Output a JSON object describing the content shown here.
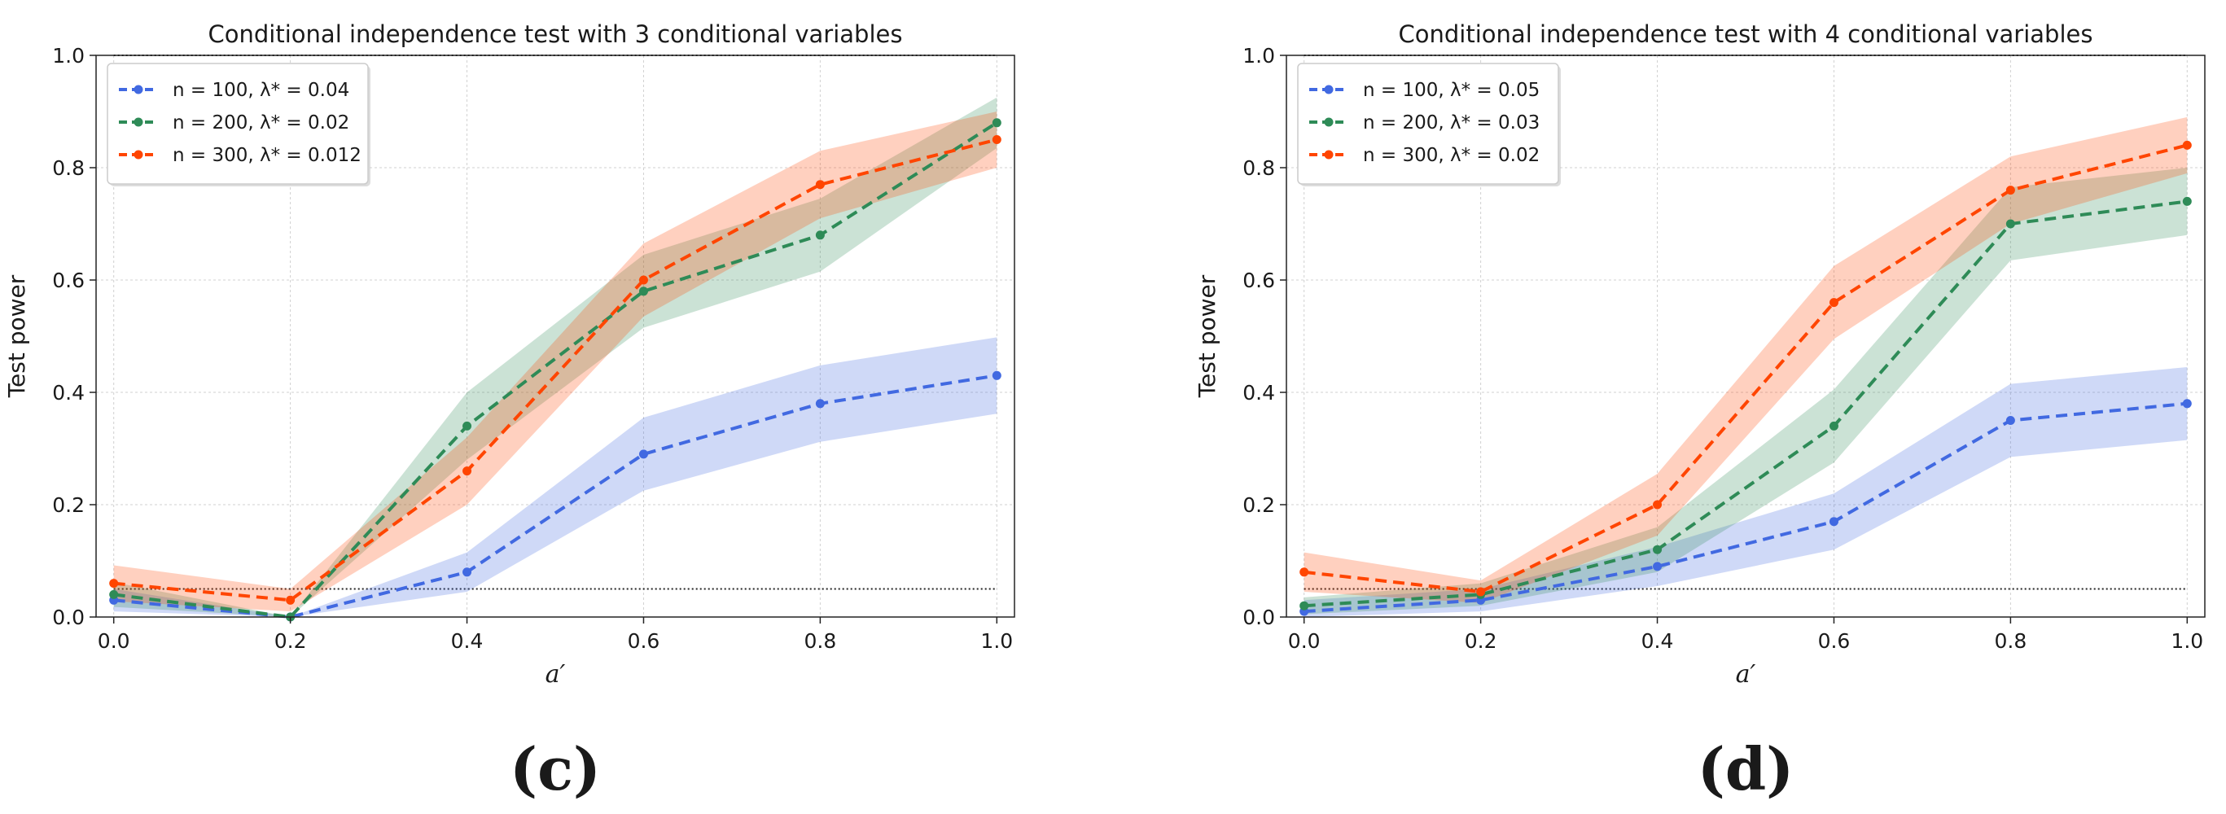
{
  "chart_data": [
    {
      "type": "line",
      "title": "Conditional independence test with 3 conditional variables",
      "xlabel": "a′",
      "ylabel": "Test power",
      "xlim": [
        -0.02,
        1.02
      ],
      "ylim": [
        0.0,
        1.0
      ],
      "x_ticks": [
        "0.0",
        "0.2",
        "0.4",
        "0.6",
        "0.8",
        "1.0"
      ],
      "y_ticks": [
        "0.0",
        "0.2",
        "0.4",
        "0.6",
        "0.8",
        "1.0"
      ],
      "grid": true,
      "legend_position": "top-left",
      "reference_lines": [
        0.05,
        1.0
      ],
      "panel_label": "(c)",
      "x": [
        0.0,
        0.2,
        0.4,
        0.6,
        0.8,
        1.0
      ],
      "series": [
        {
          "name": "n = 100, λ* = 0.04",
          "color": "#4169e1",
          "values": [
            0.03,
            0.0,
            0.08,
            0.29,
            0.38,
            0.43
          ],
          "lower": [
            0.01,
            0.0,
            0.045,
            0.225,
            0.312,
            0.362
          ],
          "upper": [
            0.05,
            0.0,
            0.115,
            0.355,
            0.448,
            0.498
          ]
        },
        {
          "name": "n = 200, λ* = 0.02",
          "color": "#2e8b57",
          "values": [
            0.04,
            0.0,
            0.34,
            0.58,
            0.68,
            0.88
          ],
          "lower": [
            0.018,
            0.0,
            0.28,
            0.515,
            0.615,
            0.835
          ],
          "upper": [
            0.062,
            0.0,
            0.4,
            0.645,
            0.745,
            0.925
          ]
        },
        {
          "name": "n = 300, λ* = 0.012",
          "color": "#ff4500",
          "values": [
            0.06,
            0.03,
            0.26,
            0.6,
            0.77,
            0.85
          ],
          "lower": [
            0.028,
            0.01,
            0.2,
            0.535,
            0.71,
            0.8
          ],
          "upper": [
            0.092,
            0.05,
            0.32,
            0.665,
            0.83,
            0.9
          ]
        }
      ]
    },
    {
      "type": "line",
      "title": "Conditional independence test with 4 conditional variables",
      "xlabel": "a′",
      "ylabel": "Test power",
      "xlim": [
        -0.02,
        1.02
      ],
      "ylim": [
        0.0,
        1.0
      ],
      "x_ticks": [
        "0.0",
        "0.2",
        "0.4",
        "0.6",
        "0.8",
        "1.0"
      ],
      "y_ticks": [
        "0.0",
        "0.2",
        "0.4",
        "0.6",
        "0.8",
        "1.0"
      ],
      "grid": true,
      "legend_position": "top-left",
      "reference_lines": [
        0.05,
        1.0
      ],
      "panel_label": "(d)",
      "x": [
        0.0,
        0.2,
        0.4,
        0.6,
        0.8,
        1.0
      ],
      "series": [
        {
          "name": "n = 100, λ* = 0.05",
          "color": "#4169e1",
          "values": [
            0.01,
            0.03,
            0.09,
            0.17,
            0.35,
            0.38
          ],
          "lower": [
            0.0,
            0.01,
            0.055,
            0.12,
            0.285,
            0.315
          ],
          "upper": [
            0.03,
            0.05,
            0.125,
            0.22,
            0.415,
            0.445
          ]
        },
        {
          "name": "n = 200, λ* = 0.03",
          "color": "#2e8b57",
          "values": [
            0.02,
            0.04,
            0.12,
            0.34,
            0.7,
            0.74
          ],
          "lower": [
            0.005,
            0.02,
            0.08,
            0.275,
            0.635,
            0.68
          ],
          "upper": [
            0.035,
            0.06,
            0.16,
            0.405,
            0.765,
            0.8
          ]
        },
        {
          "name": "n = 300, λ* = 0.02",
          "color": "#ff4500",
          "values": [
            0.08,
            0.045,
            0.2,
            0.56,
            0.76,
            0.84
          ],
          "lower": [
            0.045,
            0.025,
            0.145,
            0.495,
            0.7,
            0.79
          ],
          "upper": [
            0.115,
            0.065,
            0.255,
            0.625,
            0.82,
            0.89
          ]
        }
      ]
    }
  ]
}
